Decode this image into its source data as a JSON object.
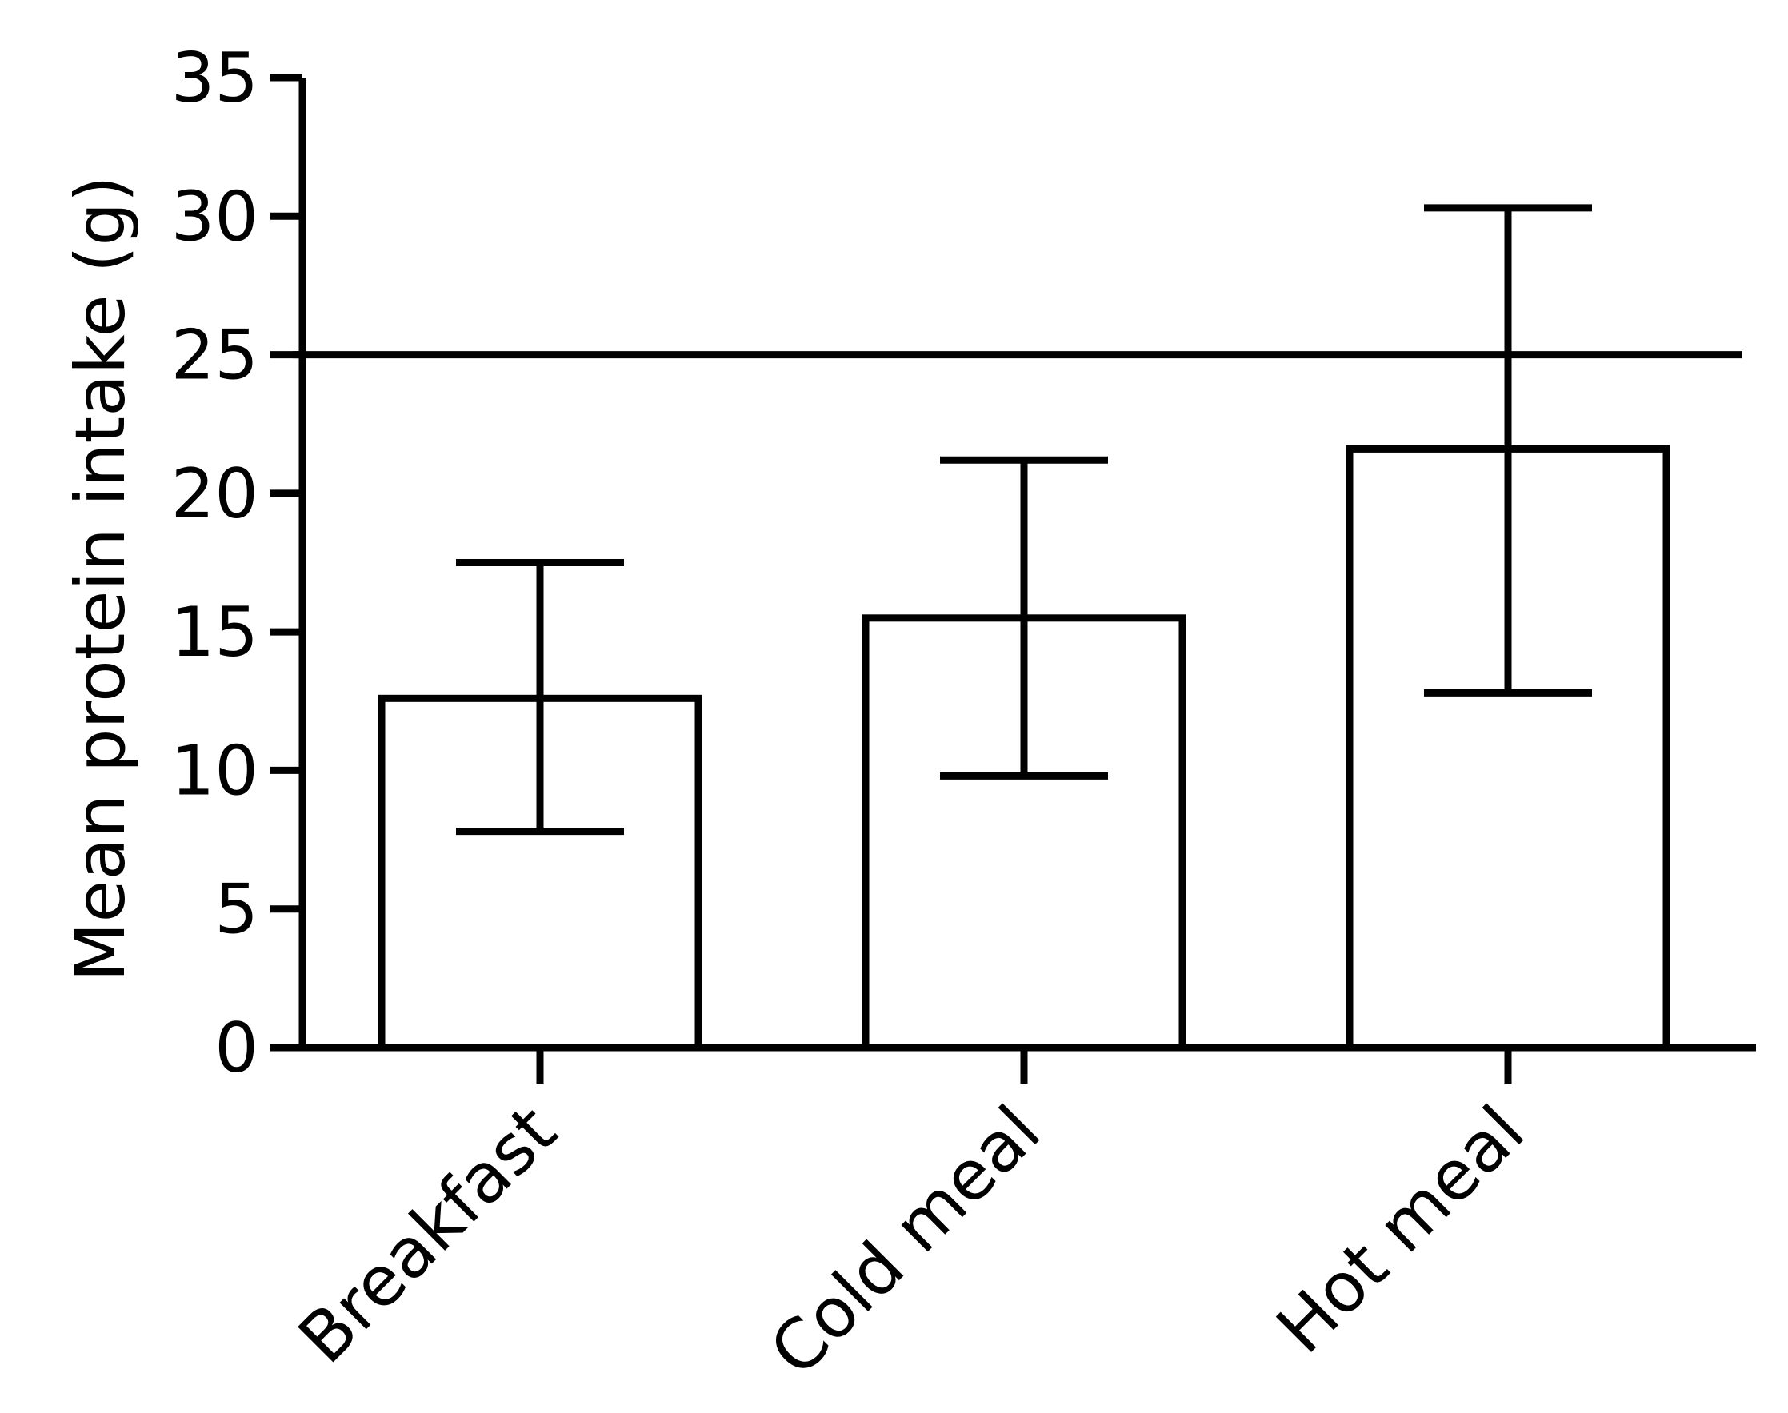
{
  "chart_data": {
    "type": "bar",
    "categories": [
      "Breakfast",
      "Cold meal",
      "Hot meal"
    ],
    "values": [
      12.6,
      15.5,
      21.6
    ],
    "error_low": [
      7.8,
      9.8,
      12.8
    ],
    "error_high": [
      17.5,
      21.2,
      30.3
    ],
    "reference_line": 25,
    "ylabel": "Mean protein intake (g)",
    "xlabel": "",
    "ylim": [
      0,
      35
    ],
    "yticks": [
      0,
      5,
      10,
      15,
      20,
      25,
      30,
      35
    ],
    "ytick_labels": [
      "0",
      "5",
      "10",
      "15",
      "20",
      "25",
      "30",
      "35"
    ],
    "grid": false,
    "bar_fill": "#ffffff",
    "stroke_color": "#000000"
  }
}
